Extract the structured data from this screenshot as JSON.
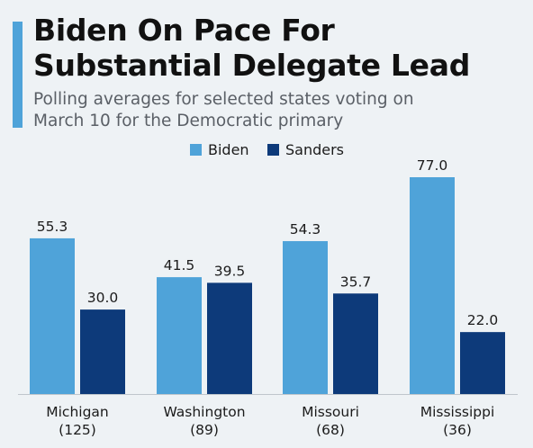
{
  "header": {
    "title_line1": "Biden On Pace For",
    "title_line2": "Substantial Delegate Lead",
    "subtitle_line1": "Polling averages for selected states voting on",
    "subtitle_line2": "March 10 for the Democratic primary"
  },
  "colors": {
    "accent": "#4fa3d9",
    "biden": "#4fa3d9",
    "sanders": "#0d3a7a",
    "baseline": "#bfc6cc"
  },
  "chart_data": {
    "type": "bar",
    "title": "Biden On Pace For Substantial Delegate Lead",
    "subtitle": "Polling averages for selected states voting on March 10 for the Democratic primary",
    "categories": [
      {
        "name": "Michigan",
        "sub": "(125)"
      },
      {
        "name": "Washington",
        "sub": "(89)"
      },
      {
        "name": "Missouri",
        "sub": "(68)"
      },
      {
        "name": "Mississippi",
        "sub": "(36)"
      }
    ],
    "series": [
      {
        "name": "Biden",
        "values": [
          55.3,
          41.5,
          54.3,
          77.0
        ],
        "labels": [
          "55.3",
          "41.5",
          "54.3",
          "77.0"
        ]
      },
      {
        "name": "Sanders",
        "values": [
          30.0,
          39.5,
          35.7,
          22.0
        ],
        "labels": [
          "30.0",
          "39.5",
          "35.7",
          "22.0"
        ]
      }
    ],
    "ylim": [
      0,
      77.0
    ],
    "legend": "top-center",
    "grid": false
  }
}
